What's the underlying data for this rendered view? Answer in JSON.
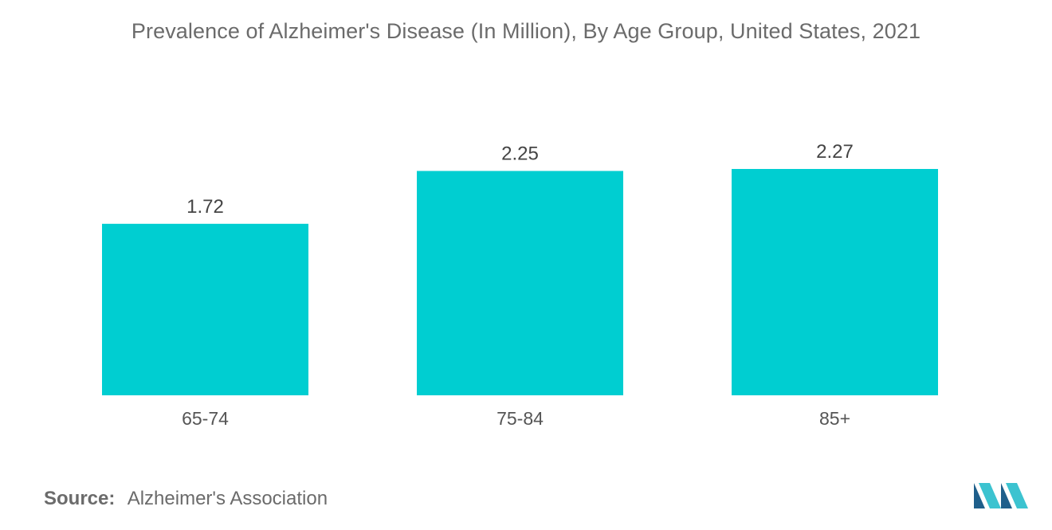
{
  "chart_data": {
    "type": "bar",
    "title": "Prevalence of Alzheimer's Disease (In Million), By Age Group, United States, 2021",
    "categories": [
      "65-74",
      "75-84",
      "85+"
    ],
    "values": [
      1.72,
      2.25,
      2.27
    ],
    "value_labels": [
      "1.72",
      "2.25",
      "2.27"
    ],
    "xlabel": "",
    "ylabel": "",
    "ylim": [
      0,
      2.27
    ],
    "grid": false,
    "legend": "none",
    "bar_color": "#00CED1"
  },
  "source": {
    "label": "Source:",
    "text": "Alzheimer's Association"
  },
  "logo": {
    "icon": "mordor-intelligence-logo-icon",
    "color_dark": "#1f5f8b",
    "color_light": "#3cc3d0"
  }
}
